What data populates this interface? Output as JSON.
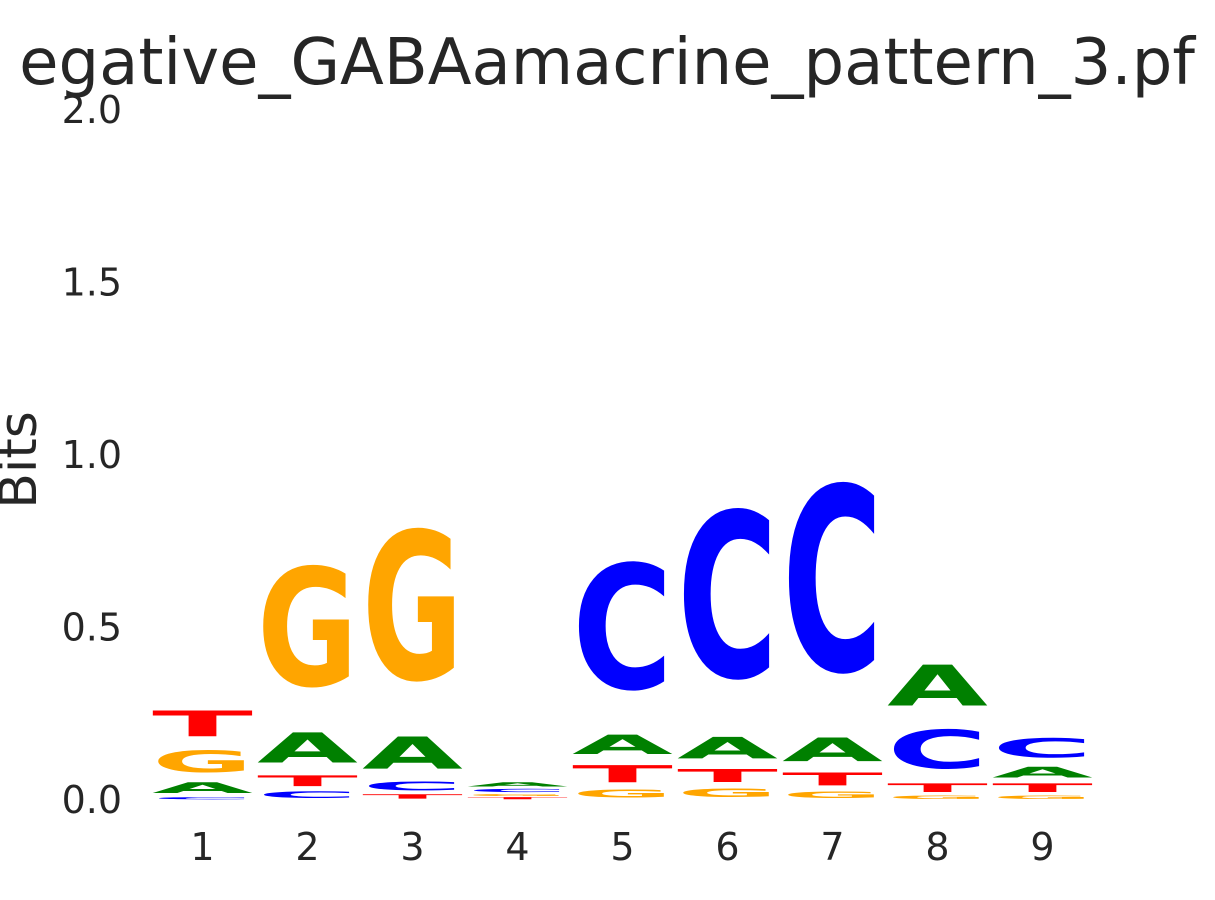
{
  "chart_data": {
    "type": "sequence-logo",
    "title": "egative_GABAamacrine_pattern_3.pf",
    "ylabel": "Bits",
    "xlabel": "",
    "ylim": [
      0,
      2
    ],
    "yticks": [
      "0.0",
      "0.5",
      "1.0",
      "1.5",
      "2.0"
    ],
    "categories": [
      "1",
      "2",
      "3",
      "4",
      "5",
      "6",
      "7",
      "8",
      "9"
    ],
    "colors": {
      "A": "#008000",
      "C": "#0000ff",
      "G": "#ffa500",
      "T": "#ff0000"
    },
    "positions": [
      {
        "position": "1",
        "letters": [
          {
            "letter": "C",
            "bits": 0.01
          },
          {
            "letter": "A",
            "bits": 0.05
          },
          {
            "letter": "G",
            "bits": 0.1
          },
          {
            "letter": "T",
            "bits": 0.12
          }
        ]
      },
      {
        "position": "2",
        "letters": [
          {
            "letter": "C",
            "bits": 0.03
          },
          {
            "letter": "T",
            "bits": 0.05
          },
          {
            "letter": "A",
            "bits": 0.14
          },
          {
            "letter": "G",
            "bits": 0.55
          }
        ]
      },
      {
        "position": "3",
        "letters": [
          {
            "letter": "T",
            "bits": 0.02
          },
          {
            "letter": "C",
            "bits": 0.04
          },
          {
            "letter": "A",
            "bits": 0.15
          },
          {
            "letter": "G",
            "bits": 0.69
          }
        ]
      },
      {
        "position": "4",
        "letters": [
          {
            "letter": "T",
            "bits": 0.01
          },
          {
            "letter": "G",
            "bits": 0.01
          },
          {
            "letter": "C",
            "bits": 0.015
          },
          {
            "letter": "A",
            "bits": 0.02
          }
        ]
      },
      {
        "position": "5",
        "letters": [
          {
            "letter": "G",
            "bits": 0.035
          },
          {
            "letter": "T",
            "bits": 0.08
          },
          {
            "letter": "A",
            "bits": 0.09
          },
          {
            "letter": "C",
            "bits": 0.58
          }
        ]
      },
      {
        "position": "6",
        "letters": [
          {
            "letter": "G",
            "bits": 0.04
          },
          {
            "letter": "T",
            "bits": 0.06
          },
          {
            "letter": "A",
            "bits": 0.1
          },
          {
            "letter": "C",
            "bits": 0.77
          }
        ]
      },
      {
        "position": "7",
        "letters": [
          {
            "letter": "G",
            "bits": 0.03
          },
          {
            "letter": "T",
            "bits": 0.06
          },
          {
            "letter": "A",
            "bits": 0.11
          },
          {
            "letter": "C",
            "bits": 0.86
          }
        ]
      },
      {
        "position": "8",
        "letters": [
          {
            "letter": "G",
            "bits": 0.015
          },
          {
            "letter": "T",
            "bits": 0.04
          },
          {
            "letter": "C",
            "bits": 0.18
          },
          {
            "letter": "A",
            "bits": 0.19
          }
        ]
      },
      {
        "position": "9",
        "letters": [
          {
            "letter": "G",
            "bits": 0.015
          },
          {
            "letter": "T",
            "bits": 0.04
          },
          {
            "letter": "A",
            "bits": 0.05
          },
          {
            "letter": "C",
            "bits": 0.09
          }
        ]
      }
    ]
  }
}
